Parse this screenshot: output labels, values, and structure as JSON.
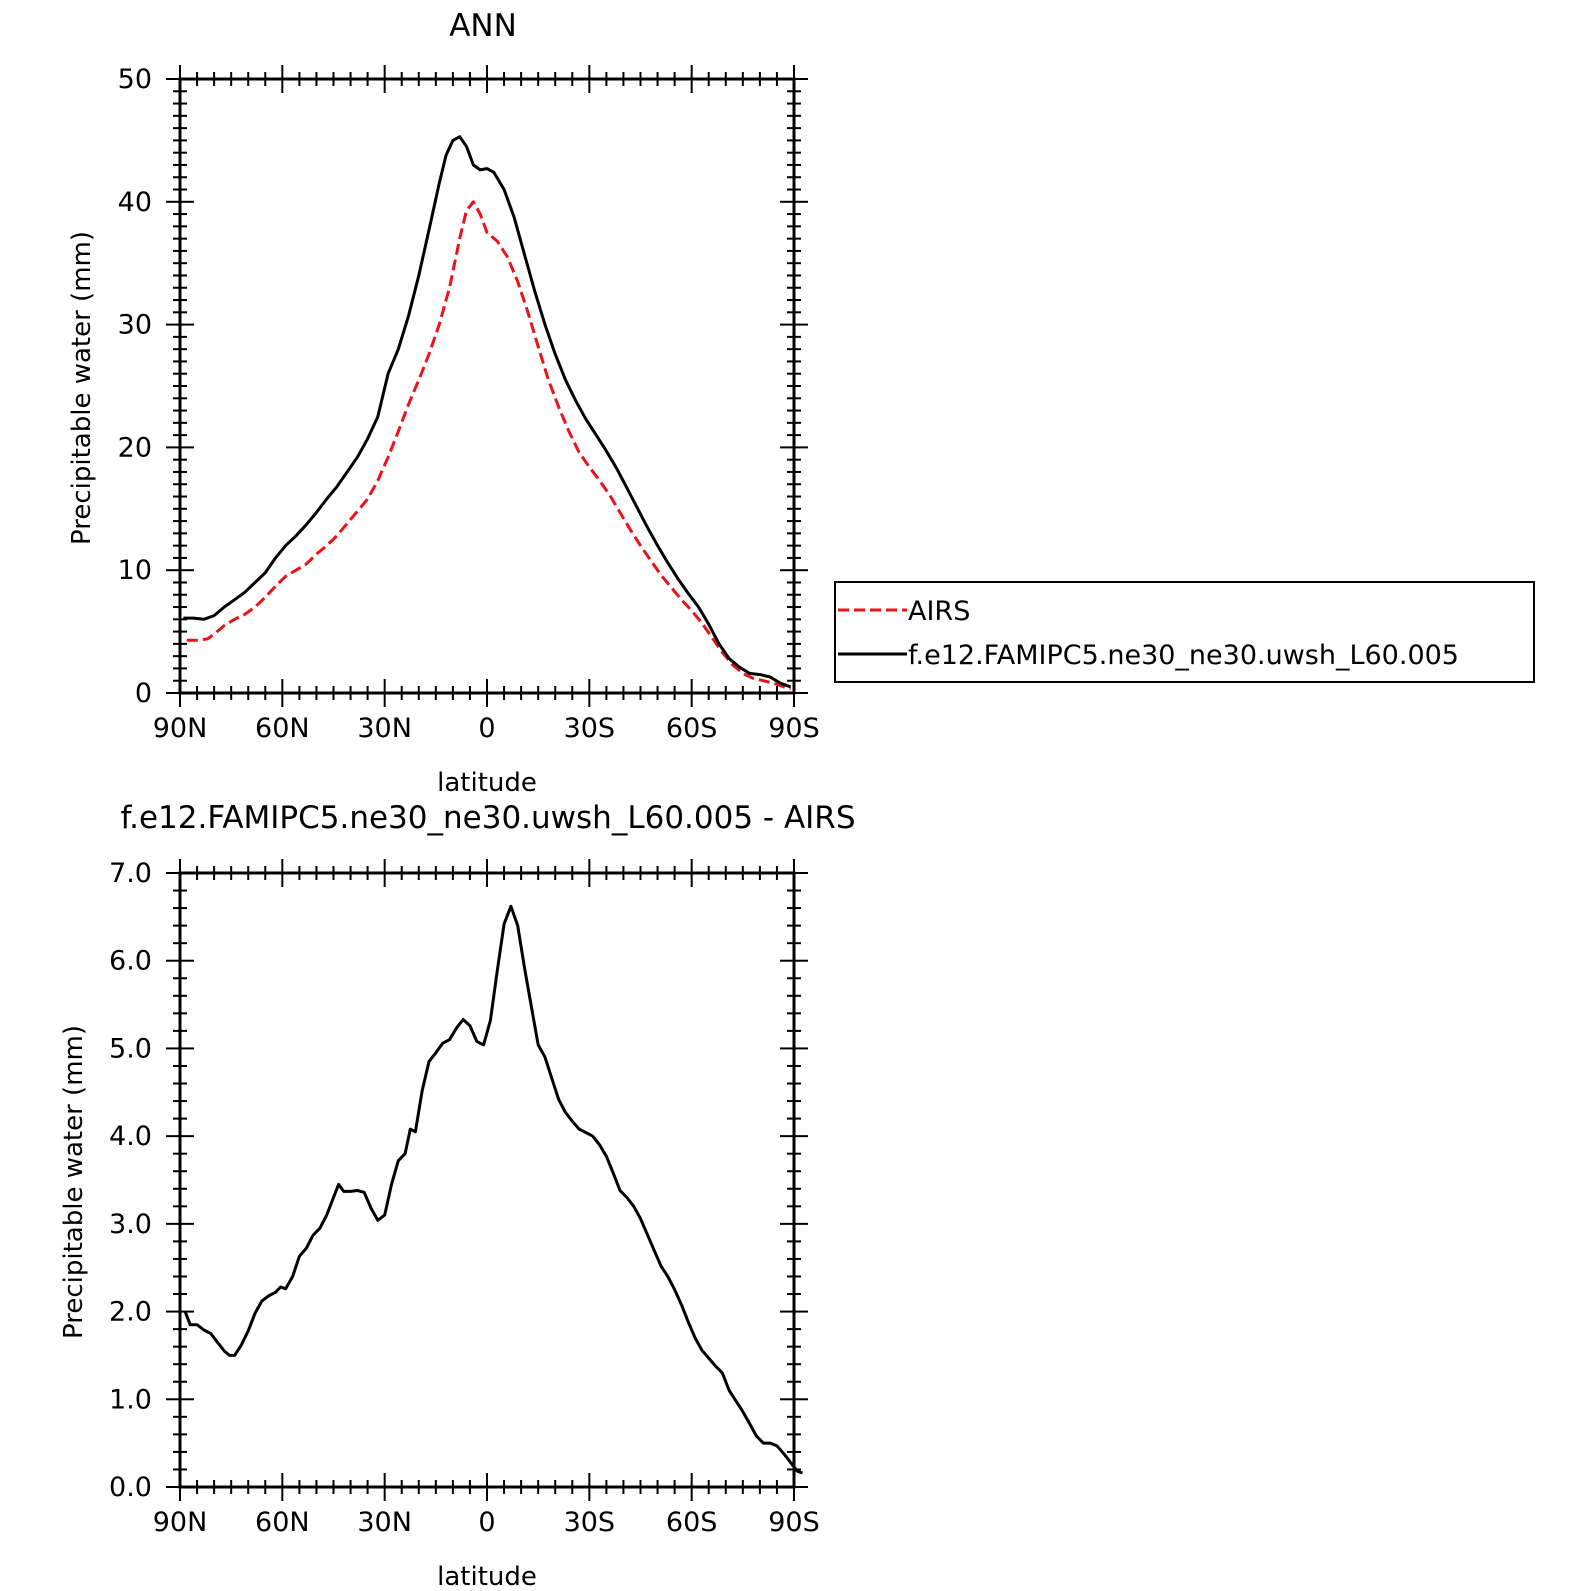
{
  "chart_data": [
    {
      "type": "line",
      "title": "ANN",
      "xlabel": "latitude",
      "ylabel": "Precipitable water (mm)",
      "ylim": [
        0,
        50
      ],
      "xlim": [
        90,
        -90
      ],
      "x_axis_direction": "90N on the left to 90S on the right",
      "xticks": [
        {
          "v": 90,
          "label": "90N"
        },
        {
          "v": 60,
          "label": "60N"
        },
        {
          "v": 30,
          "label": "30N"
        },
        {
          "v": 0,
          "label": "0"
        },
        {
          "v": -30,
          "label": "30S"
        },
        {
          "v": -60,
          "label": "60S"
        },
        {
          "v": -90,
          "label": "90S"
        }
      ],
      "yticks": [
        {
          "v": 0,
          "label": "0"
        },
        {
          "v": 10,
          "label": "10"
        },
        {
          "v": 20,
          "label": "20"
        },
        {
          "v": 30,
          "label": "30"
        },
        {
          "v": 40,
          "label": "40"
        },
        {
          "v": 50,
          "label": "50"
        }
      ],
      "legend_position": "right, outside plot",
      "series": [
        {
          "name": "AIRS",
          "color": "#e8141a",
          "style": "dashed",
          "points": [
            [
              88,
              4.3
            ],
            [
              85,
              4.3
            ],
            [
              82,
              4.4
            ],
            [
              80,
              4.8
            ],
            [
              77,
              5.5
            ],
            [
              74,
              6.0
            ],
            [
              71,
              6.4
            ],
            [
              68,
              7.0
            ],
            [
              65,
              7.8
            ],
            [
              62,
              8.7
            ],
            [
              59,
              9.5
            ],
            [
              56,
              10.0
            ],
            [
              53,
              10.5
            ],
            [
              50,
              11.3
            ],
            [
              47,
              12.0
            ],
            [
              44,
              12.8
            ],
            [
              41,
              13.8
            ],
            [
              38,
              14.8
            ],
            [
              35,
              15.8
            ],
            [
              32,
              17.3
            ],
            [
              29,
              19.2
            ],
            [
              26,
              21.3
            ],
            [
              23,
              23.5
            ],
            [
              20,
              25.5
            ],
            [
              17,
              27.6
            ],
            [
              14,
              30.0
            ],
            [
              11,
              33.0
            ],
            [
              8,
              37.0
            ],
            [
              6,
              39.3
            ],
            [
              4,
              40.0
            ],
            [
              2,
              39.0
            ],
            [
              0,
              37.5
            ],
            [
              -3,
              36.8
            ],
            [
              -6,
              35.5
            ],
            [
              -9,
              33.5
            ],
            [
              -12,
              31.0
            ],
            [
              -15,
              28.2
            ],
            [
              -18,
              25.5
            ],
            [
              -21,
              23.3
            ],
            [
              -24,
              21.3
            ],
            [
              -27,
              19.6
            ],
            [
              -30,
              18.4
            ],
            [
              -33,
              17.3
            ],
            [
              -36,
              16.1
            ],
            [
              -39,
              14.7
            ],
            [
              -42,
              13.3
            ],
            [
              -45,
              12.0
            ],
            [
              -48,
              10.8
            ],
            [
              -51,
              9.6
            ],
            [
              -54,
              8.6
            ],
            [
              -57,
              7.6
            ],
            [
              -60,
              6.7
            ],
            [
              -63,
              5.7
            ],
            [
              -66,
              4.5
            ],
            [
              -69,
              3.3
            ],
            [
              -72,
              2.3
            ],
            [
              -75,
              1.6
            ],
            [
              -78,
              1.2
            ],
            [
              -81,
              1.0
            ],
            [
              -84,
              0.8
            ],
            [
              -87,
              0.5
            ],
            [
              -89,
              0.35
            ]
          ]
        },
        {
          "name": "f.e12.FAMIPC5.ne30_ne30.uwsh_L60.005",
          "color": "#000000",
          "style": "solid",
          "points": [
            [
              89,
              6.1
            ],
            [
              86,
              6.1
            ],
            [
              83,
              6.0
            ],
            [
              80,
              6.3
            ],
            [
              77,
              7.0
            ],
            [
              74,
              7.6
            ],
            [
              71,
              8.2
            ],
            [
              68,
              9.0
            ],
            [
              65,
              9.8
            ],
            [
              62,
              11.0
            ],
            [
              59,
              12.0
            ],
            [
              56,
              12.8
            ],
            [
              53,
              13.7
            ],
            [
              50,
              14.7
            ],
            [
              47,
              15.8
            ],
            [
              44,
              16.8
            ],
            [
              41,
              18.0
            ],
            [
              38,
              19.2
            ],
            [
              35,
              20.7
            ],
            [
              32,
              22.5
            ],
            [
              29,
              26.0
            ],
            [
              26,
              28.0
            ],
            [
              23,
              30.7
            ],
            [
              20,
              34.0
            ],
            [
              17,
              37.7
            ],
            [
              14,
              41.5
            ],
            [
              12,
              43.8
            ],
            [
              10,
              45.0
            ],
            [
              8,
              45.3
            ],
            [
              6,
              44.5
            ],
            [
              4,
              43.0
            ],
            [
              2,
              42.6
            ],
            [
              0,
              42.7
            ],
            [
              -2,
              42.4
            ],
            [
              -5,
              41.0
            ],
            [
              -8,
              38.7
            ],
            [
              -11,
              35.7
            ],
            [
              -14,
              32.7
            ],
            [
              -17,
              30.0
            ],
            [
              -20,
              27.6
            ],
            [
              -23,
              25.5
            ],
            [
              -26,
              23.8
            ],
            [
              -29,
              22.3
            ],
            [
              -32,
              21.0
            ],
            [
              -35,
              19.7
            ],
            [
              -38,
              18.3
            ],
            [
              -41,
              16.7
            ],
            [
              -44,
              15.1
            ],
            [
              -47,
              13.5
            ],
            [
              -50,
              12.0
            ],
            [
              -53,
              10.6
            ],
            [
              -56,
              9.3
            ],
            [
              -59,
              8.1
            ],
            [
              -62,
              7.0
            ],
            [
              -65,
              5.6
            ],
            [
              -68,
              4.0
            ],
            [
              -71,
              2.8
            ],
            [
              -74,
              2.1
            ],
            [
              -77,
              1.6
            ],
            [
              -80,
              1.5
            ],
            [
              -83,
              1.3
            ],
            [
              -86,
              0.8
            ],
            [
              -89,
              0.5
            ]
          ]
        }
      ]
    },
    {
      "type": "line",
      "title": "f.e12.FAMIPC5.ne30_ne30.uwsh_L60.005 - AIRS",
      "xlabel": "latitude",
      "ylabel": "Precipitable water (mm)",
      "ylim": [
        0.0,
        7.0
      ],
      "xlim": [
        90,
        -90
      ],
      "xticks": [
        {
          "v": 90,
          "label": "90N"
        },
        {
          "v": 60,
          "label": "60N"
        },
        {
          "v": 30,
          "label": "30N"
        },
        {
          "v": 0,
          "label": "0"
        },
        {
          "v": -30,
          "label": "30S"
        },
        {
          "v": -60,
          "label": "60S"
        },
        {
          "v": -90,
          "label": "90S"
        }
      ],
      "yticks": [
        {
          "v": 0,
          "label": "0.0"
        },
        {
          "v": 1,
          "label": "1.0"
        },
        {
          "v": 2,
          "label": "2.0"
        },
        {
          "v": 3,
          "label": "3.0"
        },
        {
          "v": 4,
          "label": "4.0"
        },
        {
          "v": 5,
          "label": "5.0"
        },
        {
          "v": 6,
          "label": "6.0"
        },
        {
          "v": 7,
          "label": "7.0"
        }
      ],
      "series": [
        {
          "color": "#000000",
          "style": "solid",
          "points": [
            [
              88.5,
              2.0
            ],
            [
              87,
              1.85
            ],
            [
              85,
              1.85
            ],
            [
              83,
              1.79
            ],
            [
              81,
              1.75
            ],
            [
              79,
              1.65
            ],
            [
              77,
              1.55
            ],
            [
              75.5,
              1.5
            ],
            [
              74,
              1.5
            ],
            [
              72,
              1.62
            ],
            [
              70,
              1.78
            ],
            [
              68,
              1.98
            ],
            [
              66,
              2.12
            ],
            [
              64,
              2.18
            ],
            [
              62,
              2.22
            ],
            [
              60.5,
              2.28
            ],
            [
              59,
              2.26
            ],
            [
              57,
              2.4
            ],
            [
              55,
              2.63
            ],
            [
              53,
              2.72
            ],
            [
              51,
              2.87
            ],
            [
              49,
              2.95
            ],
            [
              47,
              3.1
            ],
            [
              45,
              3.3
            ],
            [
              43.5,
              3.45
            ],
            [
              42,
              3.37
            ],
            [
              40,
              3.37
            ],
            [
              38,
              3.38
            ],
            [
              36,
              3.36
            ],
            [
              34,
              3.18
            ],
            [
              32,
              3.04
            ],
            [
              30,
              3.1
            ],
            [
              28,
              3.45
            ],
            [
              26,
              3.72
            ],
            [
              24,
              3.8
            ],
            [
              22.5,
              4.08
            ],
            [
              21,
              4.05
            ],
            [
              19,
              4.52
            ],
            [
              17,
              4.85
            ],
            [
              15,
              4.95
            ],
            [
              13,
              5.06
            ],
            [
              11,
              5.1
            ],
            [
              9,
              5.23
            ],
            [
              7,
              5.33
            ],
            [
              5,
              5.26
            ],
            [
              3,
              5.08
            ],
            [
              1,
              5.04
            ],
            [
              -1,
              5.32
            ],
            [
              -3,
              5.88
            ],
            [
              -5,
              6.42
            ],
            [
              -7,
              6.62
            ],
            [
              -9,
              6.4
            ],
            [
              -11,
              5.92
            ],
            [
              -13,
              5.48
            ],
            [
              -15,
              5.04
            ],
            [
              -17,
              4.9
            ],
            [
              -19,
              4.66
            ],
            [
              -21,
              4.42
            ],
            [
              -23,
              4.27
            ],
            [
              -25,
              4.17
            ],
            [
              -27,
              4.08
            ],
            [
              -29,
              4.04
            ],
            [
              -31,
              4.0
            ],
            [
              -33,
              3.9
            ],
            [
              -35,
              3.77
            ],
            [
              -37,
              3.58
            ],
            [
              -39,
              3.38
            ],
            [
              -41,
              3.3
            ],
            [
              -43,
              3.2
            ],
            [
              -45,
              3.06
            ],
            [
              -47,
              2.88
            ],
            [
              -49,
              2.7
            ],
            [
              -51,
              2.52
            ],
            [
              -53,
              2.4
            ],
            [
              -55,
              2.25
            ],
            [
              -57,
              2.08
            ],
            [
              -59,
              1.88
            ],
            [
              -61,
              1.7
            ],
            [
              -63,
              1.56
            ],
            [
              -65,
              1.47
            ],
            [
              -67,
              1.38
            ],
            [
              -69,
              1.3
            ],
            [
              -71,
              1.1
            ],
            [
              -73,
              0.98
            ],
            [
              -75,
              0.86
            ],
            [
              -77,
              0.72
            ],
            [
              -79,
              0.58
            ],
            [
              -81,
              0.5
            ],
            [
              -83,
              0.5
            ],
            [
              -85,
              0.47
            ],
            [
              -87,
              0.38
            ],
            [
              -89,
              0.28
            ],
            [
              -91,
              0.18
            ],
            [
              -92.5,
              0.16
            ]
          ]
        }
      ]
    }
  ]
}
